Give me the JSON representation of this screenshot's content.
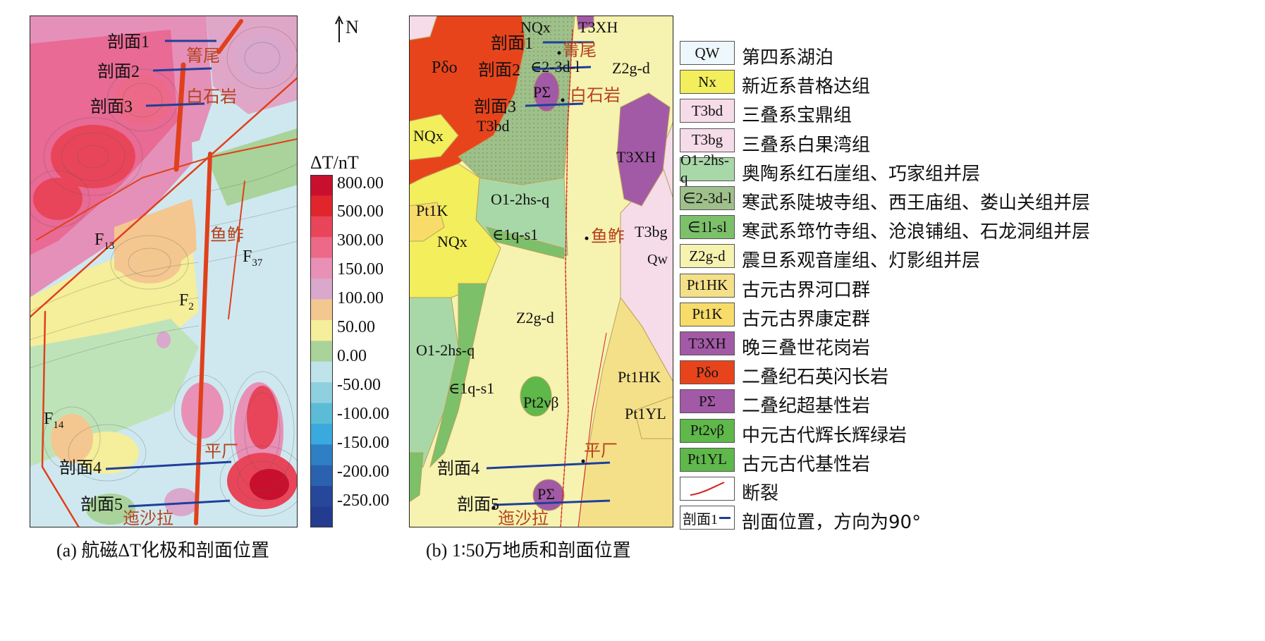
{
  "panel_a": {
    "caption": "(a) 航磁ΔT化极和剖面位置",
    "north_label": "N",
    "profiles": [
      "剖面1",
      "剖面2",
      "剖面3",
      "剖面4",
      "剖面5"
    ],
    "places": [
      "箐尾",
      "白石岩",
      "鱼鲊",
      "平厂",
      "迤沙拉"
    ],
    "faults": [
      {
        "main": "F",
        "sub": "13"
      },
      {
        "main": "F",
        "sub": "37"
      },
      {
        "main": "F",
        "sub": "2"
      },
      {
        "main": "F",
        "sub": "14"
      }
    ]
  },
  "colorbar": {
    "title": "ΔT/nT",
    "ticks": [
      "800.00",
      "500.00",
      "300.00",
      "150.00",
      "100.00",
      "50.00",
      "0.00",
      "-50.00",
      "-100.00",
      "-150.00",
      "-200.00",
      "-250.00"
    ],
    "colors": [
      "#c8102e",
      "#e0262c",
      "#e8455a",
      "#ec6a87",
      "#e890b6",
      "#d9a8cc",
      "#f4c790",
      "#f5ee9a",
      "#a9d39a",
      "#bfe3ea",
      "#8fd0df",
      "#5cbcd6",
      "#3aa9de",
      "#2f7fc4",
      "#2a62b0",
      "#27479b",
      "#233c8f"
    ]
  },
  "panel_b": {
    "caption": "(b) 1∶50万地质和剖面位置",
    "profiles": [
      "剖面1",
      "剖面2",
      "剖面3",
      "剖面4",
      "剖面5"
    ],
    "places": [
      "箐尾",
      "白石岩",
      "鱼鲊",
      "平厂",
      "迤沙拉"
    ],
    "units": [
      "NQx",
      "T3XH",
      "Pδo",
      "∈2-3d-l",
      "Z2g-d",
      "PΣ",
      "T3bd",
      "NQx",
      "T3XH",
      "Pt1K",
      "O1-2hs-q",
      "∈1q-s1",
      "NQx",
      "T3bg",
      "Qw",
      "Z2g-d",
      "O1-2hs-q",
      "∈1q-s1",
      "Pt2νβ",
      "Pt1HK",
      "Pt1YL",
      "PΣ"
    ]
  },
  "legend": {
    "items": [
      {
        "code": "QW",
        "text": "第四系湖泊",
        "color": "#eef7fb"
      },
      {
        "code": "Nx",
        "text": "新近系昔格达组",
        "color": "#f2ee5c"
      },
      {
        "code": "T3bd",
        "text": "三叠系宝鼎组",
        "color": "#f6dce8"
      },
      {
        "code": "T3bg",
        "text": "三叠系白果湾组",
        "color": "#f6dce8"
      },
      {
        "code": "O1-2hs-q",
        "text": "奥陶系红石崖组、巧家组并层",
        "color": "#a8d8a8"
      },
      {
        "code": "∈2-3d-l",
        "text": "寒武系陡坡寺组、西王庙组、娄山关组并层",
        "color": "#9fc08a"
      },
      {
        "code": "∈1l-sl",
        "text": "寒武系筇竹寺组、沧浪铺组、石龙洞组并层",
        "color": "#7cc06a"
      },
      {
        "code": "Z2g-d",
        "text": "震旦系观音崖组、灯影组并层",
        "color": "#f6f2b0"
      },
      {
        "code": "Pt1HK",
        "text": "古元古界河口群",
        "color": "#f5e08a"
      },
      {
        "code": "Pt1K",
        "text": "古元古界康定群",
        "color": "#f7dc6a"
      },
      {
        "code": "T3XH",
        "text": "晚三叠世花岗岩",
        "color": "#a35aa6"
      },
      {
        "code": "Pδo",
        "text": "二叠纪石英闪长岩",
        "color": "#e8441c"
      },
      {
        "code": "PΣ",
        "text": "二叠纪超基性岩",
        "color": "#a35aa6"
      },
      {
        "code": "Pt2νβ",
        "text": "中元古代辉长辉绿岩",
        "color": "#5fb84a"
      },
      {
        "code": "Pt1YL",
        "text": "古元古代基性岩",
        "color": "#5fb84a"
      },
      {
        "code": "",
        "text": "断裂",
        "color": "#ffffff"
      },
      {
        "code": "剖面1",
        "text": "剖面位置，方向为90°",
        "color": "#ffffff"
      }
    ]
  }
}
